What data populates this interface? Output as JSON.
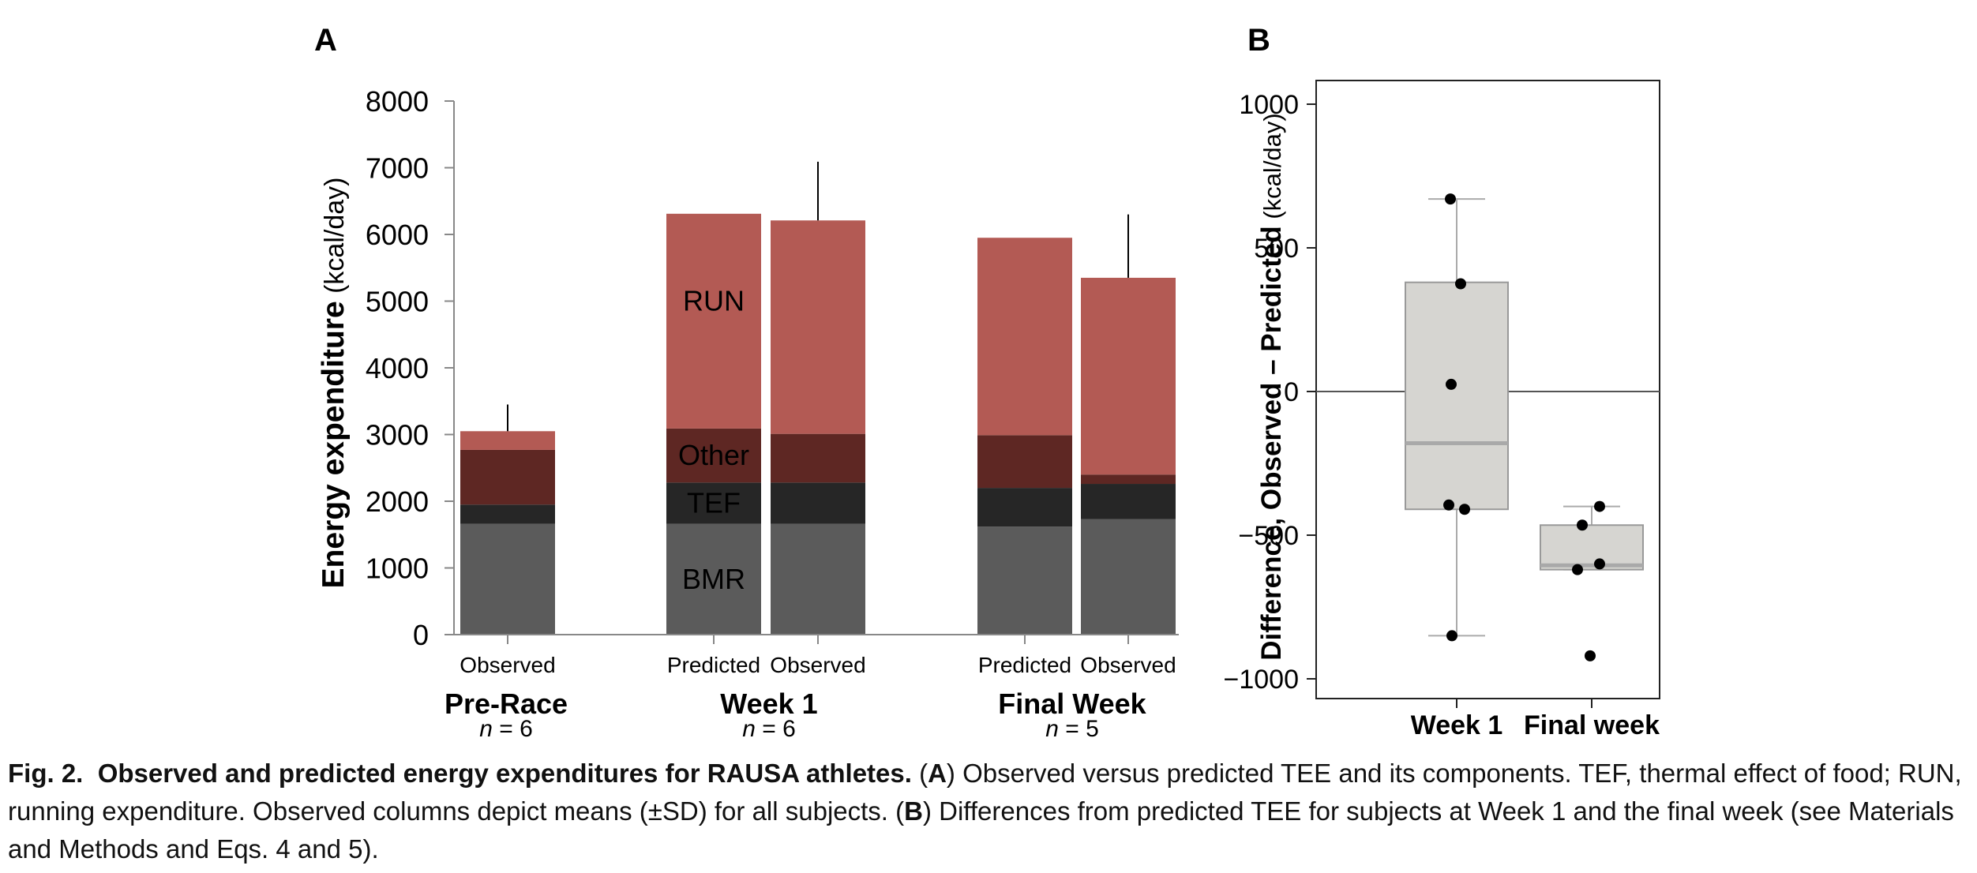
{
  "chart_data": [
    {
      "panel": "A",
      "type": "bar",
      "stacked": true,
      "ylabel_bold": "Energy expenditure",
      "ylabel_unit": "(kcal/day)",
      "ylim": [
        0,
        8000
      ],
      "yticks": [
        "0",
        "1000",
        "2000",
        "3000",
        "4000",
        "5000",
        "6000",
        "7000",
        "8000"
      ],
      "components": [
        "BMR",
        "TEF",
        "Other",
        "RUN"
      ],
      "colors": {
        "BMR": "#5b5b5b",
        "TEF": "#262626",
        "Other": "#5e2723",
        "RUN": "#b35a54"
      },
      "bars": [
        {
          "label": "Observed",
          "group": 0,
          "BMR": 1660,
          "TEF": 290,
          "Other": 820,
          "RUN": 280,
          "total": 3050,
          "sd": 400
        },
        {
          "label": "Predicted",
          "group": 1,
          "BMR": 1660,
          "TEF": 620,
          "Other": 810,
          "RUN": 3220,
          "total": 6310,
          "sd": null
        },
        {
          "label": "Observed",
          "group": 1,
          "BMR": 1660,
          "TEF": 620,
          "Other": 730,
          "RUN": 3200,
          "total": 6210,
          "sd": 880
        },
        {
          "label": "Predicted",
          "group": 2,
          "BMR": 1620,
          "TEF": 580,
          "Other": 790,
          "RUN": 2960,
          "total": 5950,
          "sd": null
        },
        {
          "label": "Observed",
          "group": 2,
          "BMR": 1730,
          "TEF": 530,
          "Other": 140,
          "RUN": 2950,
          "total": 5350,
          "sd": 950
        }
      ],
      "segment_labels": {
        "BMR": "BMR",
        "TEF": "TEF",
        "Other": "Other",
        "RUN": "RUN"
      },
      "groups": [
        {
          "name": "Pre-Race",
          "n_prefix": "n",
          "n_suffix": " = 6"
        },
        {
          "name": "Week 1",
          "n_prefix": "n",
          "n_suffix": " = 6"
        },
        {
          "name": "Final Week",
          "n_prefix": "n",
          "n_suffix": " = 5"
        }
      ]
    },
    {
      "panel": "B",
      "type": "box",
      "ylabel_bold": "Difference, Observed – Predicted",
      "ylabel_unit": "(kcal/day)",
      "ylim": [
        -1080,
        1100
      ],
      "yticks": [
        1000,
        500,
        0,
        -500,
        -1000
      ],
      "ytick_labels": [
        "1000",
        "500",
        "0",
        "−500",
        "−1000"
      ],
      "categories": [
        "Week 1",
        "Final week"
      ],
      "boxes": [
        {
          "q1": -410,
          "median": -180,
          "q3": 380,
          "whisker_low": -850,
          "whisker_high": 670,
          "points": [
            670,
            375,
            25,
            -395,
            -410,
            -850
          ]
        },
        {
          "q1": -620,
          "median": -605,
          "q3": -465,
          "whisker_low": -620,
          "whisker_high": -400,
          "points": [
            -400,
            -465,
            -600,
            -620,
            -920
          ]
        }
      ],
      "colors": {
        "box": "#d6d5d1",
        "median": "#a9a9a9"
      }
    }
  ],
  "caption": {
    "fig_label": "Fig. 2.",
    "title": "Observed and predicted energy expenditures for RAUSA athletes.",
    "text_1": " (",
    "a": "A",
    "text_2": ") Observed versus predicted TEE and its components. TEF, thermal effect of food; RUN, running expenditure. Observed columns depict means (±SD) for all subjects. (",
    "b": "B",
    "text_3": ") Differences from predicted TEE for subjects at Week 1 and the final week (see Materials and Methods and Eqs. 4 and 5)."
  }
}
